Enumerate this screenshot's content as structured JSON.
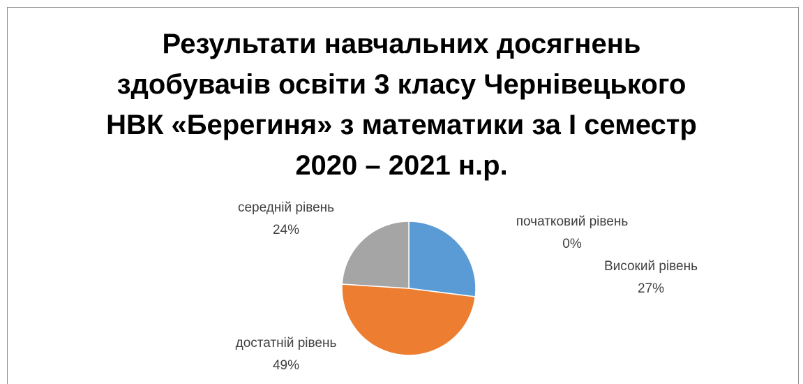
{
  "chart_data": {
    "type": "pie",
    "title_lines": [
      "Результати навчальних досягнень",
      "здобувачів освіти 3 класу Чернівецького",
      "НВК «Берегиня» з математики за І семестр",
      "2020 – 2021 н.р."
    ],
    "slices": [
      {
        "name": "Високий рівень",
        "value": 27,
        "label": "27%",
        "color": "#5B9BD5"
      },
      {
        "name": "достатній рівень",
        "value": 49,
        "label": "49%",
        "color": "#ED7D31"
      },
      {
        "name": "середній рівень",
        "value": 24,
        "label": "24%",
        "color": "#A5A5A5"
      },
      {
        "name": "початковий рівень",
        "value": 0,
        "label": "0%",
        "color": "#FFC000"
      }
    ],
    "start_angle_deg": 0,
    "direction": "clockwise",
    "legend": "none",
    "data_labels": "category name and percentage"
  }
}
